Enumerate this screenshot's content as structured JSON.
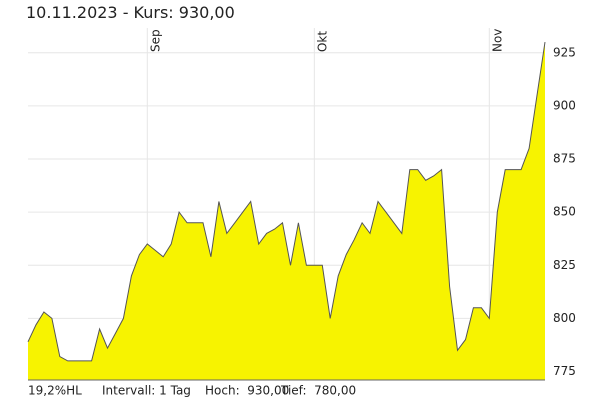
{
  "chart_data": {
    "type": "area",
    "title": "10.11.2023  -  Kurs: 930,00",
    "categories": [
      null,
      null,
      null,
      null,
      null,
      null,
      null,
      null,
      null,
      null,
      null,
      null,
      null,
      null,
      null,
      "Sep",
      null,
      null,
      null,
      null,
      null,
      null,
      null,
      null,
      null,
      null,
      null,
      null,
      null,
      null,
      null,
      null,
      null,
      null,
      null,
      null,
      "Okt",
      null,
      null,
      null,
      null,
      null,
      null,
      null,
      null,
      null,
      null,
      null,
      null,
      null,
      null,
      null,
      null,
      null,
      null,
      null,
      null,
      null,
      "Nov",
      null,
      null,
      null,
      null,
      null,
      null,
      null
    ],
    "values": [
      789,
      797,
      803,
      800,
      782,
      780,
      780,
      780,
      780,
      795,
      786,
      793,
      800,
      820,
      830,
      835,
      832,
      829,
      835,
      850,
      845,
      845,
      845,
      829,
      855,
      840,
      845,
      850,
      855,
      835,
      840,
      842,
      845,
      825,
      845,
      825,
      825,
      825,
      800,
      820,
      830,
      837,
      845,
      840,
      855,
      850,
      845,
      840,
      870,
      870,
      865,
      867,
      870,
      815,
      785,
      790,
      805,
      805,
      800,
      850,
      870,
      870,
      870,
      880,
      905,
      930
    ],
    "color": "#f7f300",
    "line_color": "#555555",
    "ylim": [
      771,
      931
    ],
    "yticks": [
      775,
      800,
      825,
      850,
      875,
      900,
      925
    ],
    "grid": true,
    "stats": [
      "19,2%HL",
      "Intervall: 1 Tag",
      "Hoch:  930,00",
      "Tief:  780,00"
    ]
  }
}
